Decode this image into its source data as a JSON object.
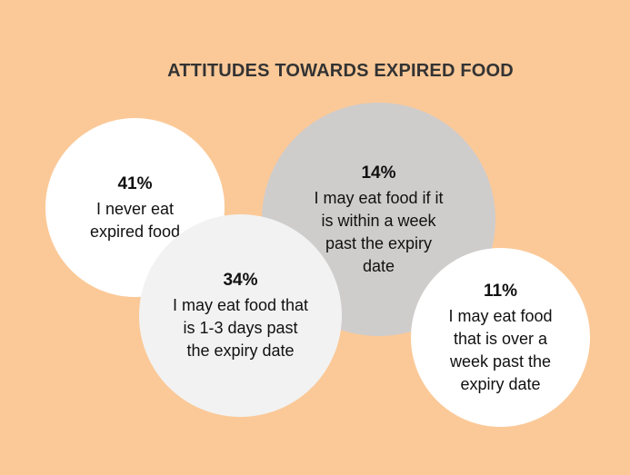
{
  "chart_data": {
    "type": "bubble",
    "title": "ATTITUDES TOWARDS EXPIRED FOOD",
    "items": [
      {
        "value_label": "41%",
        "value": 41,
        "label": "I never eat expired food",
        "color": "#ffffff"
      },
      {
        "value_label": "34%",
        "value": 34,
        "label": "I may eat food that is 1-3 days past the expiry date",
        "color": "#f2f2f2"
      },
      {
        "value_label": "14%",
        "value": 14,
        "label": "I may eat food if it is within a week past the expiry date",
        "color": "#cfcccc"
      },
      {
        "value_label": "11%",
        "value": 11,
        "label": "I may eat food that is over a week past the expiry date",
        "color": "#ffffff"
      }
    ]
  },
  "colors": {
    "background": "#fbc998",
    "title": "#333333"
  }
}
